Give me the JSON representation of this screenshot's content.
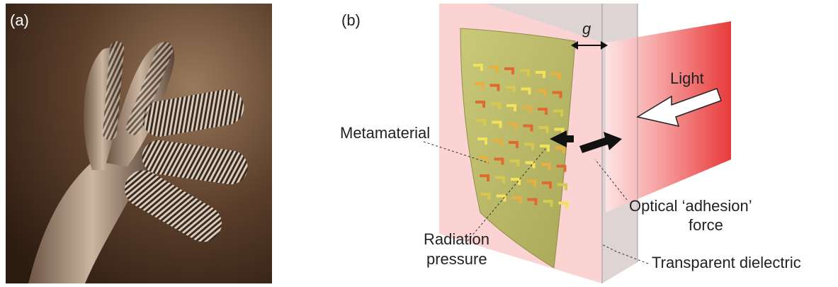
{
  "panels": {
    "a": {
      "label": "(a)"
    },
    "b": {
      "label": "(b)",
      "labels": {
        "gap": "g",
        "light": "Light",
        "metamaterial": "Metamaterial",
        "radiation": [
          "Radiation",
          "pressure"
        ],
        "adhesion": [
          "Optical ‘adhesion’",
          "force"
        ],
        "dielectric": "Transparent dielectric"
      }
    }
  }
}
